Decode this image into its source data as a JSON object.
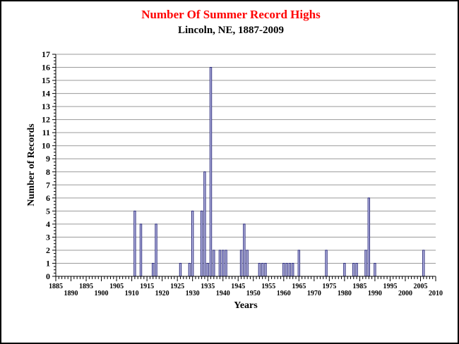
{
  "chart_data": {
    "type": "bar",
    "title": "Number Of Summer Record Highs",
    "subtitle": "Lincoln, NE, 1887-2009",
    "xlabel": "Years",
    "ylabel": "Number of Records",
    "xlim": [
      1885,
      2010
    ],
    "ylim": [
      0,
      17
    ],
    "x_ticks_row1": [
      1885,
      1895,
      1905,
      1915,
      1925,
      1935,
      1945,
      1955,
      1965,
      1975,
      1985,
      1995,
      2005
    ],
    "x_ticks_row2": [
      1890,
      1900,
      1910,
      1920,
      1930,
      1940,
      1950,
      1960,
      1970,
      1980,
      1990,
      2000,
      2010
    ],
    "y_ticks": [
      0,
      1,
      2,
      3,
      4,
      5,
      6,
      7,
      8,
      9,
      10,
      11,
      12,
      13,
      14,
      15,
      16,
      17
    ],
    "grid": "horizontal",
    "colors": {
      "title": "#ff0000",
      "bar_fill": "#c8c8f0",
      "bar_stroke": "#2a2a7a",
      "grid": "#9a9a9a",
      "text": "#000000"
    },
    "series": [
      {
        "points": [
          {
            "x": 1911,
            "y": 5
          },
          {
            "x": 1913,
            "y": 4
          },
          {
            "x": 1917,
            "y": 1
          },
          {
            "x": 1918,
            "y": 4
          },
          {
            "x": 1926,
            "y": 1
          },
          {
            "x": 1929,
            "y": 1
          },
          {
            "x": 1930,
            "y": 5
          },
          {
            "x": 1933,
            "y": 5
          },
          {
            "x": 1934,
            "y": 8
          },
          {
            "x": 1935,
            "y": 1
          },
          {
            "x": 1936,
            "y": 16
          },
          {
            "x": 1937,
            "y": 2
          },
          {
            "x": 1939,
            "y": 2
          },
          {
            "x": 1940,
            "y": 2
          },
          {
            "x": 1941,
            "y": 2
          },
          {
            "x": 1946,
            "y": 2
          },
          {
            "x": 1947,
            "y": 4
          },
          {
            "x": 1948,
            "y": 2
          },
          {
            "x": 1952,
            "y": 1
          },
          {
            "x": 1953,
            "y": 1
          },
          {
            "x": 1954,
            "y": 1
          },
          {
            "x": 1960,
            "y": 1
          },
          {
            "x": 1961,
            "y": 1
          },
          {
            "x": 1962,
            "y": 1
          },
          {
            "x": 1963,
            "y": 1
          },
          {
            "x": 1965,
            "y": 2
          },
          {
            "x": 1974,
            "y": 2
          },
          {
            "x": 1980,
            "y": 1
          },
          {
            "x": 1983,
            "y": 1
          },
          {
            "x": 1984,
            "y": 1
          },
          {
            "x": 1987,
            "y": 2
          },
          {
            "x": 1988,
            "y": 6
          },
          {
            "x": 1990,
            "y": 1
          },
          {
            "x": 2006,
            "y": 2
          }
        ]
      }
    ]
  }
}
